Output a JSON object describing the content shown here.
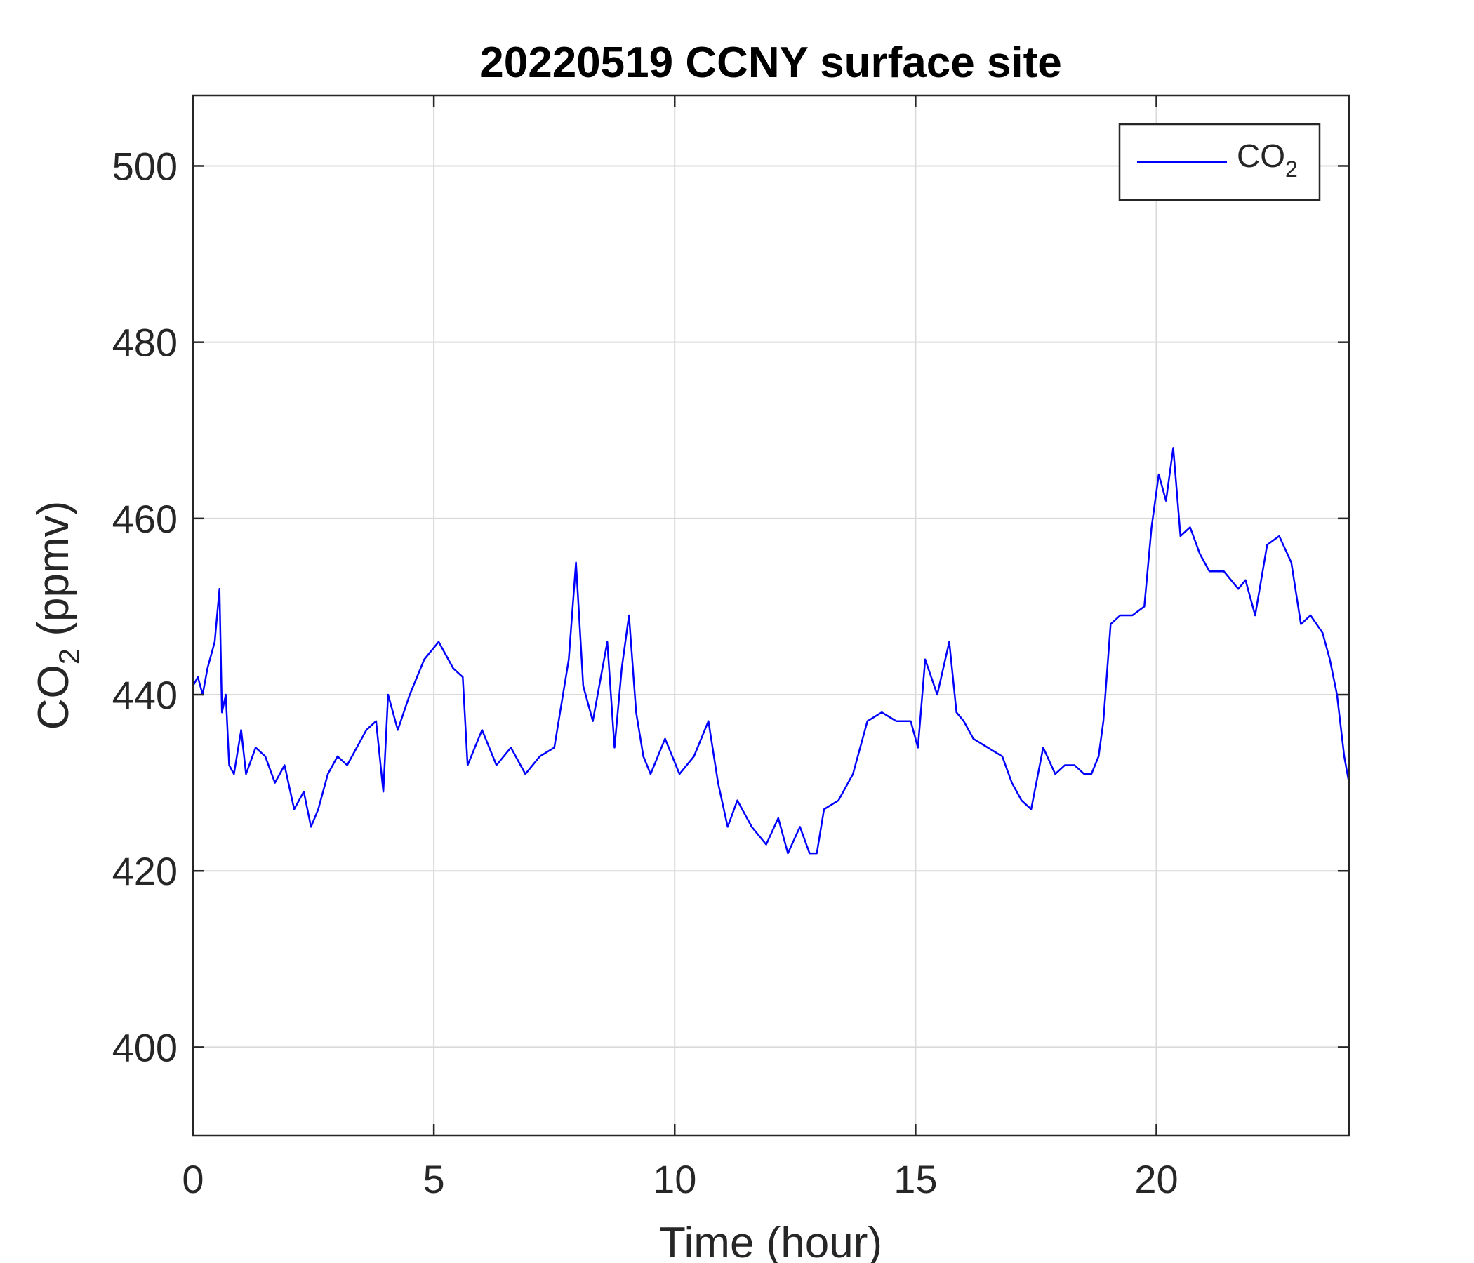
{
  "chart_data": {
    "type": "line",
    "title": "20220519 CCNY surface site",
    "xlabel": "Time (hour)",
    "ylabel": "CO2 (ppmv)",
    "ylabel_parts": {
      "base": "CO",
      "sub": "2",
      "rest": " (ppmv)"
    },
    "xlim": [
      0,
      24
    ],
    "ylim": [
      390,
      508
    ],
    "xticks": [
      0,
      5,
      10,
      15,
      20
    ],
    "xtick_labels": [
      "0",
      "5",
      "10",
      "15",
      "20"
    ],
    "yticks": [
      400,
      420,
      440,
      460,
      480,
      500
    ],
    "ytick_labels": [
      "400",
      "420",
      "440",
      "460",
      "480",
      "500"
    ],
    "grid": true,
    "legend_position": "top-right",
    "series": [
      {
        "name": "CO2",
        "name_parts": {
          "base": "CO",
          "sub": "2"
        },
        "color": "#0000ff",
        "x": [
          0,
          0.1,
          0.2,
          0.3,
          0.45,
          0.55,
          0.6,
          0.68,
          0.75,
          0.85,
          1.0,
          1.1,
          1.3,
          1.5,
          1.7,
          1.9,
          2.1,
          2.3,
          2.45,
          2.6,
          2.8,
          3.0,
          3.2,
          3.4,
          3.6,
          3.8,
          3.95,
          4.05,
          4.25,
          4.5,
          4.8,
          5.1,
          5.4,
          5.6,
          5.7,
          5.85,
          6.0,
          6.3,
          6.6,
          6.9,
          7.2,
          7.5,
          7.8,
          7.95,
          8.1,
          8.3,
          8.6,
          8.75,
          8.9,
          9.05,
          9.2,
          9.35,
          9.5,
          9.8,
          10.1,
          10.4,
          10.7,
          10.9,
          11.1,
          11.3,
          11.6,
          11.9,
          12.15,
          12.35,
          12.6,
          12.8,
          12.95,
          13.1,
          13.4,
          13.7,
          14.0,
          14.3,
          14.6,
          14.9,
          15.05,
          15.2,
          15.45,
          15.7,
          15.85,
          16.0,
          16.2,
          16.5,
          16.8,
          17.0,
          17.2,
          17.4,
          17.65,
          17.9,
          18.1,
          18.3,
          18.5,
          18.65,
          18.8,
          18.9,
          19.05,
          19.25,
          19.5,
          19.75,
          19.9,
          20.05,
          20.2,
          20.35,
          20.5,
          20.7,
          20.9,
          21.1,
          21.4,
          21.7,
          21.85,
          22.05,
          22.3,
          22.55,
          22.8,
          23.0,
          23.2,
          23.45,
          23.6,
          23.75,
          23.9,
          24.0
        ],
        "y": [
          441,
          442,
          440,
          443,
          446,
          452,
          438,
          440,
          432,
          431,
          436,
          431,
          434,
          433,
          430,
          432,
          427,
          429,
          425,
          427,
          431,
          433,
          432,
          434,
          436,
          437,
          429,
          440,
          436,
          440,
          444,
          446,
          443,
          442,
          432,
          434,
          436,
          432,
          434,
          431,
          433,
          434,
          444,
          455,
          441,
          437,
          446,
          434,
          443,
          449,
          438,
          433,
          431,
          435,
          431,
          433,
          437,
          430,
          425,
          428,
          425,
          423,
          426,
          422,
          425,
          422,
          422,
          427,
          428,
          431,
          437,
          438,
          437,
          437,
          434,
          444,
          440,
          446,
          438,
          437,
          435,
          434,
          433,
          430,
          428,
          427,
          434,
          431,
          432,
          432,
          431,
          431,
          433,
          437,
          448,
          449,
          449,
          450,
          459,
          465,
          462,
          468,
          458,
          459,
          456,
          454,
          454,
          452,
          453,
          449,
          457,
          458,
          455,
          448,
          449,
          447,
          444,
          440,
          433,
          430
        ]
      }
    ]
  }
}
